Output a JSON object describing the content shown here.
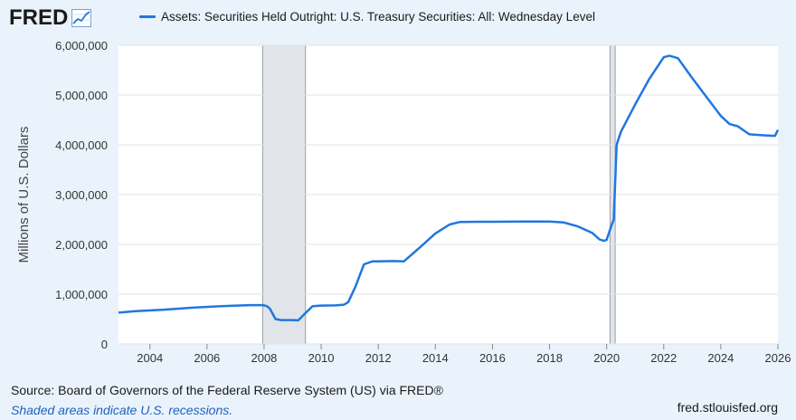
{
  "header": {
    "logo_text": "FRED",
    "logo_icon": "trend-line-icon"
  },
  "chart_data": {
    "type": "line",
    "title": "",
    "ylabel": "Millions of U.S. Dollars",
    "xlabel": "",
    "xlim": [
      2002.9,
      2026.0
    ],
    "ylim": [
      0,
      6000000
    ],
    "x_ticks": [
      2004,
      2006,
      2008,
      2010,
      2012,
      2014,
      2016,
      2018,
      2020,
      2022,
      2024,
      2026
    ],
    "x_tick_labels": [
      "2004",
      "2006",
      "2008",
      "2010",
      "2012",
      "2014",
      "2016",
      "2018",
      "2020",
      "2022",
      "2024",
      "2026"
    ],
    "y_ticks": [
      0,
      1000000,
      2000000,
      3000000,
      4000000,
      5000000,
      6000000
    ],
    "y_tick_labels": [
      "0",
      "1,000,000",
      "2,000,000",
      "3,000,000",
      "4,000,000",
      "5,000,000",
      "6,000,000"
    ],
    "grid": true,
    "legend_position": "top-left",
    "color": "#1f77e0",
    "recessions": [
      [
        2007.95,
        2009.45
      ],
      [
        2020.12,
        2020.3
      ]
    ],
    "series": [
      {
        "name": "Assets: Securities Held Outright: U.S. Treasury Securities: All: Wednesday Level",
        "x": [
          2002.9,
          2003.5,
          2004.5,
          2005.5,
          2006.5,
          2007.5,
          2007.95,
          2008.1,
          2008.2,
          2008.4,
          2008.6,
          2009.0,
          2009.2,
          2009.45,
          2009.7,
          2010.0,
          2010.5,
          2010.8,
          2010.95,
          2011.2,
          2011.5,
          2011.8,
          2012.0,
          2012.5,
          2012.9,
          2013.5,
          2014.0,
          2014.5,
          2014.85,
          2015.5,
          2016.0,
          2017.0,
          2018.0,
          2018.5,
          2019.0,
          2019.5,
          2019.75,
          2019.9,
          2020.0,
          2020.15,
          2020.25,
          2020.35,
          2020.5,
          2021.0,
          2021.5,
          2022.0,
          2022.2,
          2022.5,
          2022.8,
          2023.0,
          2023.5,
          2024.0,
          2024.3,
          2024.6,
          2025.0,
          2025.5,
          2025.9,
          2026.0
        ],
        "y": [
          630000,
          660000,
          690000,
          730000,
          760000,
          780000,
          780000,
          760000,
          710000,
          500000,
          480000,
          480000,
          475000,
          620000,
          760000,
          770000,
          775000,
          790000,
          840000,
          1150000,
          1600000,
          1660000,
          1660000,
          1665000,
          1660000,
          1960000,
          2220000,
          2400000,
          2450000,
          2455000,
          2455000,
          2460000,
          2460000,
          2440000,
          2360000,
          2230000,
          2100000,
          2070000,
          2090000,
          2350000,
          2500000,
          4000000,
          4260000,
          4810000,
          5330000,
          5760000,
          5790000,
          5740000,
          5500000,
          5340000,
          4960000,
          4580000,
          4420000,
          4370000,
          4210000,
          4190000,
          4180000,
          4300000
        ]
      }
    ]
  },
  "footer": {
    "source": "Source: Board of Governors of the Federal Reserve System (US) via FRED®",
    "note": "Shaded areas indicate U.S. recessions.",
    "site": "fred.stlouisfed.org"
  }
}
